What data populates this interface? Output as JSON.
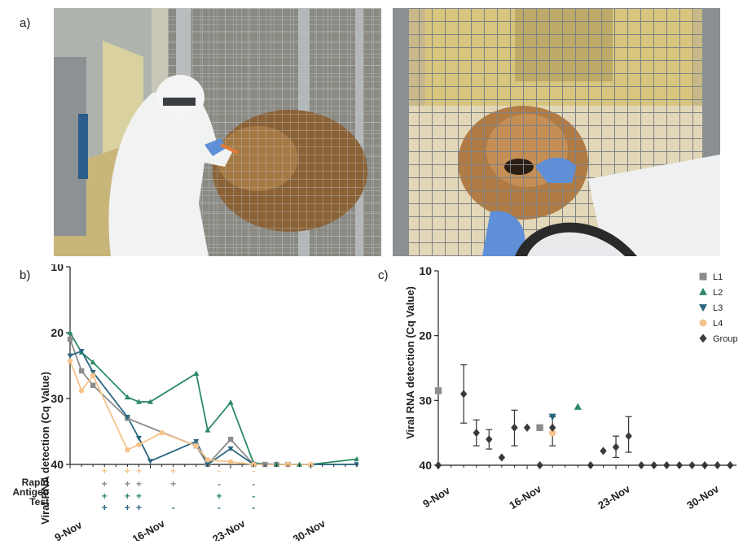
{
  "panel_labels": {
    "a": "a)",
    "b": "b)",
    "c": "c)"
  },
  "colors": {
    "L1": "#8c8c8c",
    "L2": "#2e8a66",
    "L3": "#2a6680",
    "L4": "#f6c38b",
    "Group": "#3a3a3a"
  },
  "rapid_test": {
    "label_lines": [
      "Rapid",
      "Antigen",
      "Test"
    ],
    "rows": [
      {
        "series": "L4",
        "marks": [
          {
            "day": 12,
            "s": "+"
          },
          {
            "day": 14,
            "s": "+"
          },
          {
            "day": 15,
            "s": "+"
          },
          {
            "day": 18,
            "s": "+"
          },
          {
            "day": 22,
            "s": "-"
          },
          {
            "day": 25,
            "s": "-"
          }
        ]
      },
      {
        "series": "L1",
        "marks": [
          {
            "day": 12,
            "s": "+"
          },
          {
            "day": 14,
            "s": "+"
          },
          {
            "day": 15,
            "s": "+"
          },
          {
            "day": 18,
            "s": "+"
          },
          {
            "day": 22,
            "s": "-"
          },
          {
            "day": 25,
            "s": "-"
          }
        ]
      },
      {
        "series": "L2",
        "marks": [
          {
            "day": 12,
            "s": "+"
          },
          {
            "day": 14,
            "s": "+"
          },
          {
            "day": 15,
            "s": "+"
          },
          {
            "day": 22,
            "s": "+"
          },
          {
            "day": 25,
            "s": "-"
          }
        ]
      },
      {
        "series": "L3",
        "marks": [
          {
            "day": 12,
            "s": "+"
          },
          {
            "day": 14,
            "s": "+"
          },
          {
            "day": 15,
            "s": "+"
          },
          {
            "day": 18,
            "s": "-"
          },
          {
            "day": 22,
            "s": "-"
          },
          {
            "day": 25,
            "s": "-"
          }
        ]
      }
    ]
  },
  "chart_data": [
    {
      "panel": "b",
      "type": "line",
      "ylabel": "Viral RNA detection (Cq Value)",
      "y_reversed": true,
      "ylim": [
        10,
        40
      ],
      "yticks": [
        10,
        20,
        30,
        40
      ],
      "x_unit": "day of November",
      "xlim": [
        9,
        35
      ],
      "xticks": [
        {
          "day": 9,
          "label": "9-Nov"
        },
        {
          "day": 16,
          "label": "16-Nov"
        },
        {
          "day": 23,
          "label": "23-Nov"
        },
        {
          "day": 30,
          "label": "30-Nov"
        }
      ],
      "series": [
        {
          "name": "L1",
          "marker": "square",
          "points": [
            [
              9,
              21.0
            ],
            [
              10,
              25.8
            ],
            [
              11,
              28.0
            ],
            [
              14,
              33.0
            ],
            [
              20,
              37.2
            ],
            [
              21,
              40.0
            ],
            [
              23,
              36.2
            ],
            [
              25,
              40.0
            ],
            [
              26,
              40.0
            ],
            [
              27,
              40.0
            ],
            [
              28,
              40.0
            ]
          ]
        },
        {
          "name": "L2",
          "marker": "triangle-up",
          "points": [
            [
              9,
              20.0
            ],
            [
              10,
              23.0
            ],
            [
              11,
              24.5
            ],
            [
              14,
              29.8
            ],
            [
              15,
              30.5
            ],
            [
              16,
              30.5
            ],
            [
              20,
              26.2
            ],
            [
              21,
              34.8
            ],
            [
              23,
              30.6
            ],
            [
              25,
              39.8
            ],
            [
              27,
              40.0
            ],
            [
              29,
              40.0
            ],
            [
              30,
              40.0
            ],
            [
              34,
              39.2
            ]
          ]
        },
        {
          "name": "L3",
          "marker": "triangle-down",
          "points": [
            [
              9,
              23.5
            ],
            [
              10,
              22.8
            ],
            [
              11,
              26.0
            ],
            [
              14,
              32.8
            ],
            [
              15,
              36.0
            ],
            [
              16,
              39.5
            ],
            [
              20,
              36.5
            ],
            [
              21,
              40.0
            ],
            [
              23,
              37.6
            ],
            [
              25,
              40.0
            ],
            [
              34,
              40.0
            ]
          ]
        },
        {
          "name": "L4",
          "marker": "circle",
          "points": [
            [
              9,
              24.3
            ],
            [
              10,
              28.8
            ],
            [
              11,
              26.5
            ],
            [
              14,
              37.8
            ],
            [
              15,
              37.0
            ],
            [
              17,
              35.2
            ],
            [
              20,
              37.2
            ],
            [
              21,
              39.3
            ],
            [
              23,
              39.6
            ],
            [
              25,
              40.0
            ],
            [
              28,
              40.0
            ],
            [
              30,
              40.0
            ]
          ]
        }
      ]
    },
    {
      "panel": "c",
      "type": "scatter",
      "ylabel": "Viral RNA detection (Cq Value)",
      "y_reversed": true,
      "ylim": [
        10,
        40
      ],
      "yticks": [
        10,
        20,
        30,
        40
      ],
      "x_unit": "day of November",
      "xlim": [
        9,
        32.5
      ],
      "xticks": [
        {
          "day": 9,
          "label": "9-Nov"
        },
        {
          "day": 16,
          "label": "16-Nov"
        },
        {
          "day": 23,
          "label": "23-Nov"
        },
        {
          "day": 30,
          "label": "30-Nov"
        }
      ],
      "legend": {
        "placement": "top-right",
        "entries": [
          "L1",
          "L2",
          "L3",
          "L4",
          "Group"
        ]
      },
      "series": [
        {
          "name": "L1",
          "marker": "square",
          "points": [
            [
              9,
              28.5
            ],
            [
              17,
              34.2
            ]
          ]
        },
        {
          "name": "L2",
          "marker": "triangle-up",
          "points": [
            [
              20,
              31.0
            ]
          ]
        },
        {
          "name": "L3",
          "marker": "triangle-down",
          "points": [
            [
              18,
              32.5
            ]
          ]
        },
        {
          "name": "L4",
          "marker": "circle",
          "points": [
            [
              18,
              35.0
            ]
          ]
        },
        {
          "name": "Group",
          "marker": "diamond",
          "points": [
            {
              "x": 9,
              "y": 40.0
            },
            {
              "x": 11,
              "y": 29.0,
              "lo": 24.5,
              "hi": 33.5
            },
            {
              "x": 12,
              "y": 35.0,
              "lo": 33.0,
              "hi": 37.0
            },
            {
              "x": 13,
              "y": 36.0,
              "lo": 34.5,
              "hi": 37.5
            },
            {
              "x": 14,
              "y": 38.8
            },
            {
              "x": 15,
              "y": 34.2,
              "lo": 31.5,
              "hi": 37.0
            },
            {
              "x": 16,
              "y": 34.2
            },
            {
              "x": 17,
              "y": 40.0
            },
            {
              "x": 18,
              "y": 34.2,
              "lo": 32.5,
              "hi": 37.0
            },
            {
              "x": 21,
              "y": 40.0
            },
            {
              "x": 22,
              "y": 37.8
            },
            {
              "x": 23,
              "y": 37.2,
              "lo": 35.5,
              "hi": 38.8
            },
            {
              "x": 24,
              "y": 35.5,
              "lo": 32.5,
              "hi": 38.0
            },
            {
              "x": 25,
              "y": 40.0
            },
            {
              "x": 26,
              "y": 40.0
            },
            {
              "x": 27,
              "y": 40.0
            },
            {
              "x": 28,
              "y": 40.0
            },
            {
              "x": 29,
              "y": 40.0
            },
            {
              "x": 30,
              "y": 40.0
            },
            {
              "x": 31,
              "y": 40.0
            },
            {
              "x": 32,
              "y": 40.0
            }
          ]
        }
      ]
    }
  ]
}
